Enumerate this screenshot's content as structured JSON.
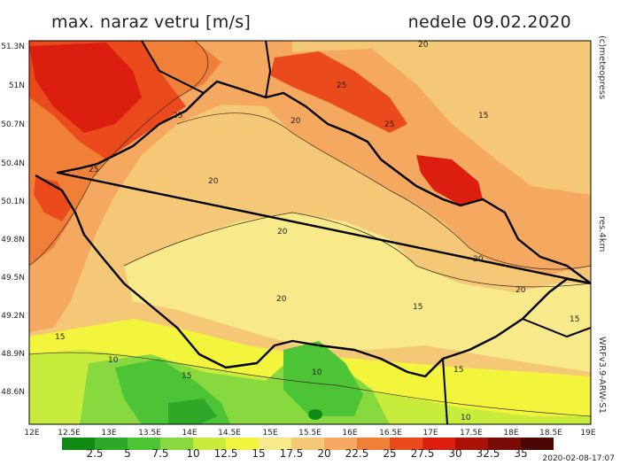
{
  "title_left": "max. naraz vetru [m/s]",
  "title_right": "nedele 09.02.2020",
  "credit": "(c)meteopress",
  "resolution": "res.4km",
  "model": "WRFv3.9-ARW-S1",
  "timestamp": "2020-02-08-17:07",
  "lat_labels": [
    "51.3N",
    "51N",
    "50.7N",
    "50.4N",
    "50.1N",
    "49.8N",
    "49.5N",
    "49.2N",
    "48.9N",
    "48.6N"
  ],
  "lon_labels": [
    "12E",
    "12.5E",
    "13E",
    "13.5E",
    "14E",
    "14.5E",
    "15E",
    "15.5E",
    "16E",
    "16.5E",
    "17E",
    "17.5E",
    "18E",
    "18.5E",
    "19E"
  ],
  "legend": {
    "labels": [
      "2.5",
      "5",
      "7.5",
      "10",
      "12.5",
      "15",
      "17.5",
      "20",
      "22.5",
      "25",
      "27.5",
      "30",
      "32.5",
      "35"
    ],
    "colors": [
      "#0f8a14",
      "#2fa82a",
      "#4cc435",
      "#88d840",
      "#c8ec3c",
      "#f2f53c",
      "#f8e98a",
      "#f5c878",
      "#f5a860",
      "#f08038",
      "#ea4a1c",
      "#dc1e10",
      "#aa1208",
      "#7a0a04",
      "#4a0603"
    ]
  },
  "contour_labels": [
    "20",
    "25",
    "25",
    "25",
    "20",
    "15",
    "25",
    "20",
    "20",
    "20",
    "20",
    "20",
    "15",
    "15",
    "15",
    "10",
    "15",
    "10",
    "15",
    "10"
  ]
}
